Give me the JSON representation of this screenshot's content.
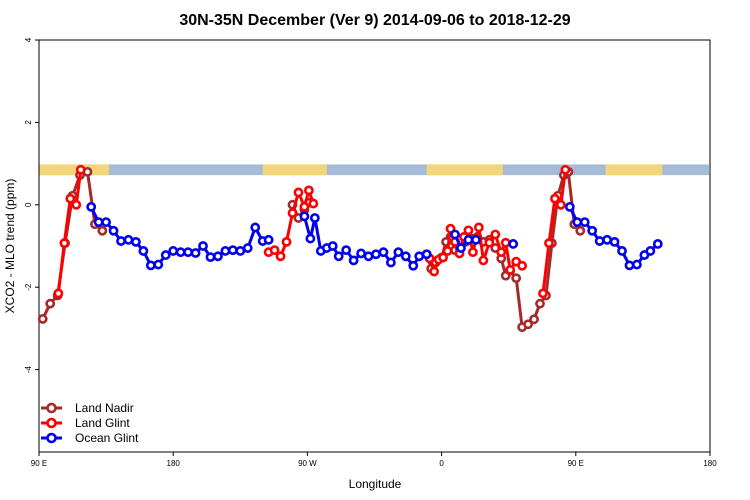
{
  "chart_data": {
    "type": "line",
    "title": "30N-35N December (Ver 9)   2014-09-06 to 2018-12-29",
    "xlabel": "Longitude",
    "ylabel": "XCO2 - MLO trend (ppm)",
    "xlim": [
      0,
      450
    ],
    "ylim": [
      -6,
      4
    ],
    "x_ticks": [
      {
        "value": 0,
        "label": "90 E"
      },
      {
        "value": 90,
        "label": "180"
      },
      {
        "value": 180,
        "label": "90 W"
      },
      {
        "value": 270,
        "label": "0"
      },
      {
        "value": 360,
        "label": "90 E"
      },
      {
        "value": 450,
        "label": "180"
      }
    ],
    "y_ticks": [
      {
        "value": 4,
        "label": "4"
      },
      {
        "value": 2,
        "label": "2"
      },
      {
        "value": 0,
        "label": "0"
      },
      {
        "value": -2,
        "label": "-2"
      },
      {
        "value": -4,
        "label": "-4"
      }
    ],
    "band": {
      "y_min": 0.72,
      "y_max": 0.98,
      "land_color": "#f5d57a",
      "ocean_color": "#a6bbd8"
    },
    "band_land_ranges": [
      [
        0,
        47
      ],
      [
        150,
        193
      ],
      [
        260,
        311
      ],
      [
        380,
        418
      ]
    ],
    "legend": [
      {
        "name": "Land Nadir",
        "color": "#a52a2a"
      },
      {
        "name": "Land Glint",
        "color": "#ff0000"
      },
      {
        "name": "Ocean Glint",
        "color": "#0000ee"
      }
    ],
    "series": [
      {
        "name": "Land Nadir",
        "color": "#a52a2a",
        "segments": [
          [
            [
              2.5,
              -2.77
            ],
            [
              7.5,
              -2.4
            ],
            [
              12.5,
              -2.2
            ],
            [
              17.5,
              -0.93
            ],
            [
              22.5,
              0.22
            ],
            [
              27.5,
              0.72
            ],
            [
              32.5,
              0.8
            ],
            [
              37.5,
              -0.47
            ],
            [
              42.5,
              -0.63
            ]
          ],
          [
            [
              170,
              0
            ],
            [
              174,
              -0.32
            ],
            [
              178,
              -0.12
            ],
            [
              181,
              0.05
            ]
          ],
          [
            [
              260,
              -1.2
            ],
            [
              263,
              -1.55
            ],
            [
              266,
              -1.4
            ],
            [
              270,
              -1.28
            ],
            [
              273,
              -0.9
            ],
            [
              276,
              -0.78
            ],
            [
              279,
              -1.1
            ],
            [
              282,
              -1.05
            ],
            [
              286,
              -0.9
            ],
            [
              290,
              -0.82
            ],
            [
              294,
              -0.78
            ],
            [
              298,
              -0.9
            ],
            [
              302,
              -0.85
            ],
            [
              306,
              -1.05
            ],
            [
              310,
              -1.3
            ],
            [
              313,
              -1.72
            ],
            [
              316,
              -1.6
            ],
            [
              320,
              -1.78
            ],
            [
              324,
              -2.97
            ],
            [
              328,
              -2.9
            ],
            [
              332,
              -2.78
            ],
            [
              336,
              -2.4
            ],
            [
              340,
              -2.2
            ],
            [
              344,
              -0.93
            ],
            [
              348,
              0.22
            ],
            [
              352,
              0.72
            ],
            [
              355,
              0.8
            ],
            [
              359,
              -0.47
            ],
            [
              363,
              -0.63
            ]
          ]
        ]
      },
      {
        "name": "Land Glint",
        "color": "#ff0000",
        "segments": [
          [
            [
              13,
              -2.15
            ],
            [
              17,
              -0.93
            ],
            [
              21,
              0.15
            ],
            [
              25,
              0
            ],
            [
              28,
              0.85
            ]
          ],
          [
            [
              154,
              -1.15
            ],
            [
              158,
              -1.1
            ],
            [
              162,
              -1.25
            ],
            [
              166,
              -0.9
            ],
            [
              170,
              -0.2
            ],
            [
              174,
              0.3
            ],
            [
              178,
              -0.05
            ],
            [
              181,
              0.35
            ],
            [
              184,
              0.03
            ]
          ],
          [
            [
              262,
              -1.3
            ],
            [
              265,
              -1.62
            ],
            [
              268,
              -1.33
            ],
            [
              271,
              -1.28
            ],
            [
              274,
              -1.12
            ],
            [
              276,
              -0.58
            ],
            [
              279,
              -0.9
            ],
            [
              282,
              -1.18
            ],
            [
              285,
              -0.78
            ],
            [
              288,
              -0.62
            ],
            [
              291,
              -1.15
            ],
            [
              295,
              -0.55
            ],
            [
              298,
              -1.35
            ],
            [
              302,
              -0.92
            ],
            [
              306,
              -0.72
            ],
            [
              310,
              -1.15
            ],
            [
              313,
              -0.92
            ],
            [
              316,
              -1.58
            ],
            [
              320,
              -1.38
            ],
            [
              324,
              -1.48
            ]
          ],
          [
            [
              338,
              -2.15
            ],
            [
              342,
              -0.93
            ],
            [
              346,
              0.15
            ],
            [
              350,
              0
            ],
            [
              353,
              0.85
            ]
          ]
        ]
      },
      {
        "name": "Ocean Glint",
        "color": "#0000ee",
        "segments": [
          [
            [
              35,
              -0.05
            ],
            [
              40,
              -0.42
            ],
            [
              45,
              -0.42
            ],
            [
              50,
              -0.63
            ],
            [
              55,
              -0.88
            ],
            [
              60,
              -0.85
            ],
            [
              65,
              -0.9
            ],
            [
              70,
              -1.12
            ],
            [
              75,
              -1.47
            ],
            [
              80,
              -1.45
            ],
            [
              85,
              -1.22
            ],
            [
              90,
              -1.12
            ],
            [
              95,
              -1.15
            ],
            [
              100,
              -1.15
            ],
            [
              105,
              -1.17
            ],
            [
              110,
              -1
            ],
            [
              115,
              -1.27
            ],
            [
              120,
              -1.25
            ],
            [
              125,
              -1.12
            ],
            [
              130,
              -1.1
            ],
            [
              135,
              -1.12
            ],
            [
              140,
              -1.05
            ],
            [
              145,
              -0.55
            ],
            [
              150,
              -0.88
            ],
            [
              154,
              -0.85
            ]
          ],
          [
            [
              178,
              -0.28
            ],
            [
              182,
              -0.82
            ],
            [
              185,
              -0.32
            ],
            [
              189,
              -1.12
            ],
            [
              193,
              -1.05
            ],
            [
              197,
              -1
            ],
            [
              201,
              -1.25
            ],
            [
              206,
              -1.1
            ],
            [
              211,
              -1.35
            ],
            [
              216,
              -1.18
            ],
            [
              221,
              -1.25
            ],
            [
              226,
              -1.2
            ],
            [
              231,
              -1.15
            ],
            [
              236,
              -1.4
            ],
            [
              241,
              -1.15
            ],
            [
              246,
              -1.25
            ],
            [
              251,
              -1.48
            ],
            [
              255,
              -1.25
            ],
            [
              260,
              -1.2
            ]
          ],
          [
            [
              279,
              -0.72
            ],
            [
              283,
              -1.05
            ],
            [
              288,
              -0.85
            ],
            [
              293,
              -0.85
            ]
          ],
          [
            [
              318,
              -0.95
            ]
          ],
          [
            [
              356,
              -0.05
            ],
            [
              361,
              -0.42
            ],
            [
              366,
              -0.42
            ],
            [
              371,
              -0.63
            ],
            [
              376,
              -0.88
            ],
            [
              381,
              -0.85
            ],
            [
              386,
              -0.9
            ],
            [
              391,
              -1.12
            ],
            [
              396,
              -1.47
            ],
            [
              401,
              -1.45
            ],
            [
              406,
              -1.22
            ],
            [
              410,
              -1.12
            ],
            [
              415,
              -0.95
            ]
          ]
        ]
      }
    ]
  }
}
